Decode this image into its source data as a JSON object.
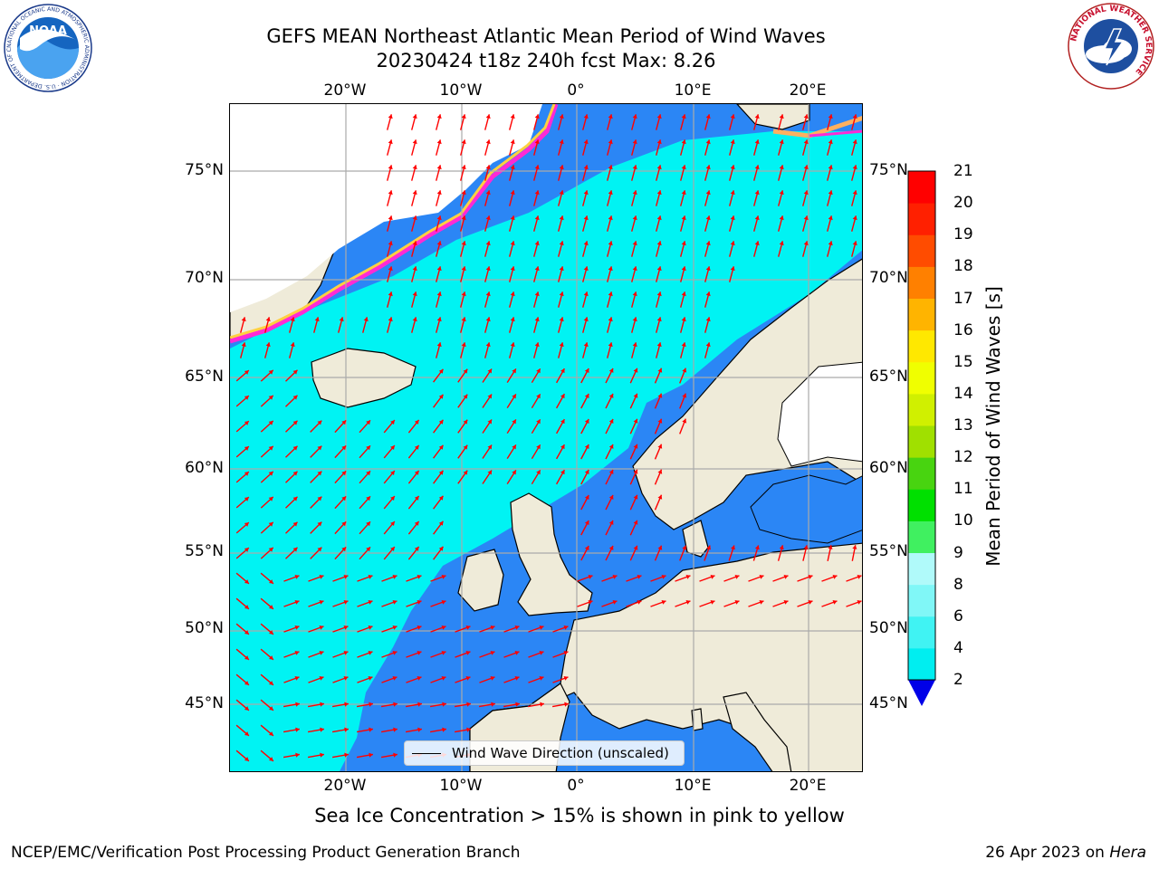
{
  "header": {
    "title_line1": "GEFS MEAN Northeast Atlantic Mean Period of Wind Waves",
    "title_line2": "20230424 t18z 240h fcst   Max: 8.26"
  },
  "logos": {
    "noaa_text": "NOAA",
    "noaa_ring": "NATIONAL OCEANIC AND ATMOSPHERIC ADMINISTRATION · U.S. DEPARTMENT OF COMMERCE",
    "nws_ring": "NATIONAL WEATHER SERVICE"
  },
  "map": {
    "lon_labels_top": [
      "20°W",
      "10°W",
      "0°",
      "10°E",
      "20°E"
    ],
    "lon_labels_bottom": [
      "20°W",
      "10°W",
      "0°",
      "10°E",
      "20°E"
    ],
    "lat_labels_left": [
      "75°N",
      "70°N",
      "65°N",
      "60°N",
      "55°N",
      "50°N",
      "45°N"
    ],
    "lat_labels_right": [
      "75°N",
      "70°N",
      "65°N",
      "60°N",
      "55°N",
      "50°N",
      "45°N"
    ],
    "colors": {
      "land": "#efebd9",
      "ice_white": "#ffffff",
      "sea_dark": "#2b86f5",
      "sea_cyan": "#00f3f3",
      "arrow": "#ff0000",
      "grid": "#aaaaaa"
    }
  },
  "legend": {
    "label": "Wind Wave Direction (unscaled)"
  },
  "colorbar": {
    "title": "Mean Period of Wind Waves [s]",
    "tick_labels": [
      "2",
      "4",
      "6",
      "8",
      "9",
      "10",
      "11",
      "12",
      "13",
      "14",
      "15",
      "16",
      "17",
      "18",
      "19",
      "20",
      "21"
    ],
    "colors": [
      "#0071f5",
      "#00eef0",
      "#40f3f3",
      "#80f7f7",
      "#b0fafa",
      "#40f060",
      "#00e000",
      "#48d410",
      "#a0e000",
      "#d0f000",
      "#f0ff00",
      "#ffe800",
      "#ffb400",
      "#ff8000",
      "#ff4c00",
      "#ff2000",
      "#ff0000"
    ],
    "under_color": "#0000e8"
  },
  "footer": {
    "ice_note": "Sea Ice Concentration > 15% is shown in pink to yellow",
    "left": "NCEP/EMC/Verification Post Processing Product Generation Branch",
    "right_date": "26 Apr 2023 on",
    "right_machine": "Hera"
  }
}
